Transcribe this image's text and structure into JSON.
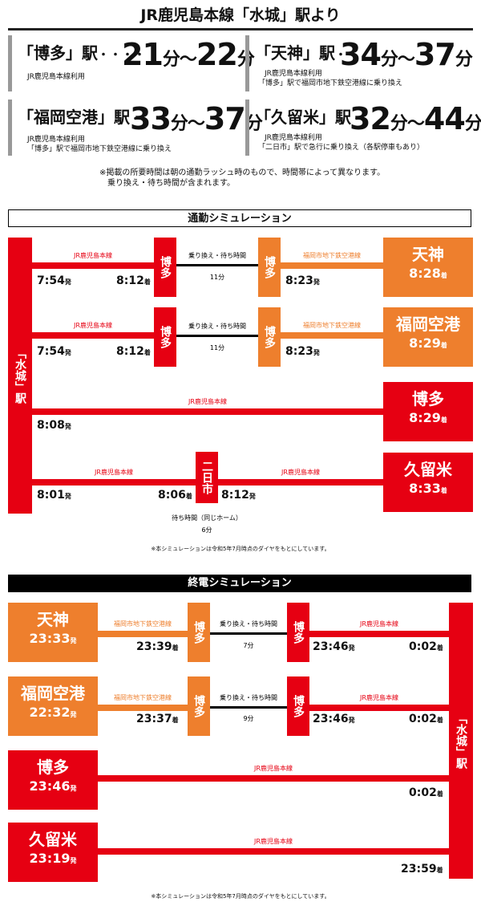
{
  "header": {
    "title": "JR鹿児島本線「水城」駅より",
    "cards": [
      {
        "dest": "「博多」駅",
        "dots": "・・・・",
        "time_from": "21",
        "time_to": "22",
        "unit": "分",
        "sep": "〜",
        "lines": [
          "JR鹿児島本線利用"
        ]
      },
      {
        "dest": "「天神」駅",
        "dots": "・・",
        "time_from": "34",
        "time_to": "37",
        "unit": "分",
        "sep": "〜",
        "lines": [
          "JR鹿児島本線利用",
          "「博多」駅で福岡市地下鉄空港線に乗り換え"
        ]
      },
      {
        "dest": "「福岡空港」駅",
        "dots": "・",
        "time_from": "33",
        "time_to": "37",
        "unit": "分",
        "sep": "〜",
        "lines": [
          "JR鹿児島本線利用",
          "「博多」駅で福岡市地下鉄空港線に乗り換え"
        ]
      },
      {
        "dest": "「久留米」駅",
        "dots": "・",
        "time_from": "32",
        "time_to": "44",
        "unit": "分",
        "sep": "〜",
        "lines": [
          "JR鹿児島本線利用",
          "「二日市」駅で急行に乗り換え（各駅停車もあり）"
        ]
      }
    ],
    "note_line1": "※掲載の所要時間は朝の通勤ラッシュ時のもので、時間帯によって異なります。",
    "note_line2": "乗り換え・待ち時間が含まれます。"
  },
  "commute": {
    "heading": "通勤シミュレーション",
    "origin": "「水城」駅",
    "jr_line": "JR鹿児島本線",
    "subway_line": "福岡市地下鉄空港線",
    "transfer_label": "乗り換え・待ち時間",
    "hakata": "博多",
    "futsukaichi": "二日市",
    "dep_suffix": "発",
    "arr_suffix": "着",
    "routes": [
      {
        "dep": "7:54",
        "hakata_arr": "8:12",
        "transfer": "11分",
        "subway_dep": "8:23",
        "dest": "天神",
        "dest_arr": "8:28"
      },
      {
        "dep": "7:54",
        "hakata_arr": "8:12",
        "transfer": "11分",
        "subway_dep": "8:23",
        "dest": "福岡空港",
        "dest_arr": "8:29"
      }
    ],
    "direct": {
      "dep": "8:08",
      "dest": "博多",
      "dest_arr": "8:29"
    },
    "kurume": {
      "dep": "8:01",
      "futsukaichi_arr": "8:06",
      "futsukaichi_dep": "8:12",
      "wait_label": "待ち時間（同じホーム）",
      "wait": "6分",
      "dest": "久留米",
      "dest_arr": "8:33"
    },
    "footnote": "※本シミュレーションは令和5年7月時点のダイヤをもとにしています。"
  },
  "last_train": {
    "heading": "終電シミュレーション",
    "origin": "「水城」駅",
    "routes": [
      {
        "origin": "天神",
        "dep": "23:33",
        "hakata_arr": "23:39",
        "transfer": "7分",
        "jr_dep": "23:46",
        "arr": "0:02"
      },
      {
        "origin": "福岡空港",
        "dep": "22:32",
        "hakata_arr": "23:37",
        "transfer": "9分",
        "jr_dep": "23:46",
        "arr": "0:02"
      }
    ],
    "direct": {
      "origin": "博多",
      "dep": "23:46",
      "arr": "0:02"
    },
    "kurume": {
      "origin": "久留米",
      "dep": "23:19",
      "arr": "23:59"
    },
    "footnote": "※本シミュレーションは令和5年7月時点のダイヤをもとにしています。"
  },
  "colors": {
    "jr": "#e60012",
    "subway": "#ee7f2d"
  }
}
